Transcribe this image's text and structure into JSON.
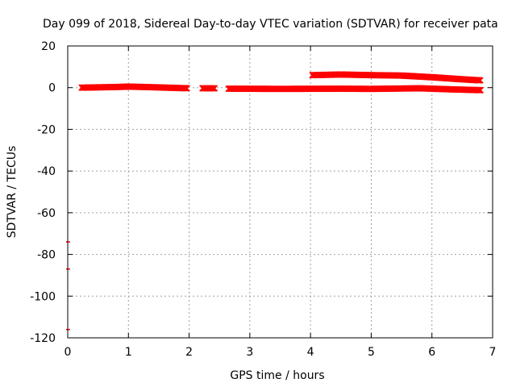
{
  "chart_data": {
    "type": "scatter",
    "title": "Day 099 of 2018, Sidereal Day-to-day VTEC variation (SDTVAR) for receiver pata",
    "xlabel": "GPS time / hours",
    "ylabel": "SDTVAR / TECUs",
    "xlim": [
      0,
      7
    ],
    "ylim": [
      -120,
      20
    ],
    "xticks": [
      0,
      1,
      2,
      3,
      4,
      5,
      6,
      7
    ],
    "yticks": [
      -120,
      -100,
      -80,
      -60,
      -40,
      -20,
      0,
      20
    ],
    "grid": true,
    "legend": "none",
    "marker_color": "#ff0000",
    "series": [
      {
        "segments": [
          {
            "x_start": 0.23,
            "x_end": 1.97,
            "y_points": [
              [
                0.23,
                0
              ],
              [
                0.8,
                0.3
              ],
              [
                1.0,
                0.5
              ],
              [
                1.4,
                0.2
              ],
              [
                1.97,
                -0.3
              ]
            ]
          },
          {
            "x_start": 2.22,
            "x_end": 2.42,
            "y_points": [
              [
                2.22,
                -0.3
              ],
              [
                2.42,
                -0.3
              ]
            ]
          },
          {
            "x_start": 2.65,
            "x_end": 6.8,
            "y_points": [
              [
                2.65,
                -0.5
              ],
              [
                3.5,
                -0.6
              ],
              [
                4.5,
                -0.5
              ],
              [
                5.0,
                -0.6
              ],
              [
                5.8,
                -0.3
              ],
              [
                6.3,
                -0.8
              ],
              [
                6.8,
                -1.2
              ]
            ]
          },
          {
            "x_start": 4.03,
            "x_end": 6.8,
            "y_points": [
              [
                4.03,
                6.0
              ],
              [
                4.5,
                6.3
              ],
              [
                5.0,
                6.0
              ],
              [
                5.5,
                5.8
              ],
              [
                6.0,
                5.0
              ],
              [
                6.5,
                4.0
              ],
              [
                6.8,
                3.5
              ]
            ]
          }
        ],
        "isolated_points": [
          [
            0.0,
            -74
          ],
          [
            0.0,
            -87
          ],
          [
            0.0,
            -116
          ]
        ]
      }
    ]
  }
}
